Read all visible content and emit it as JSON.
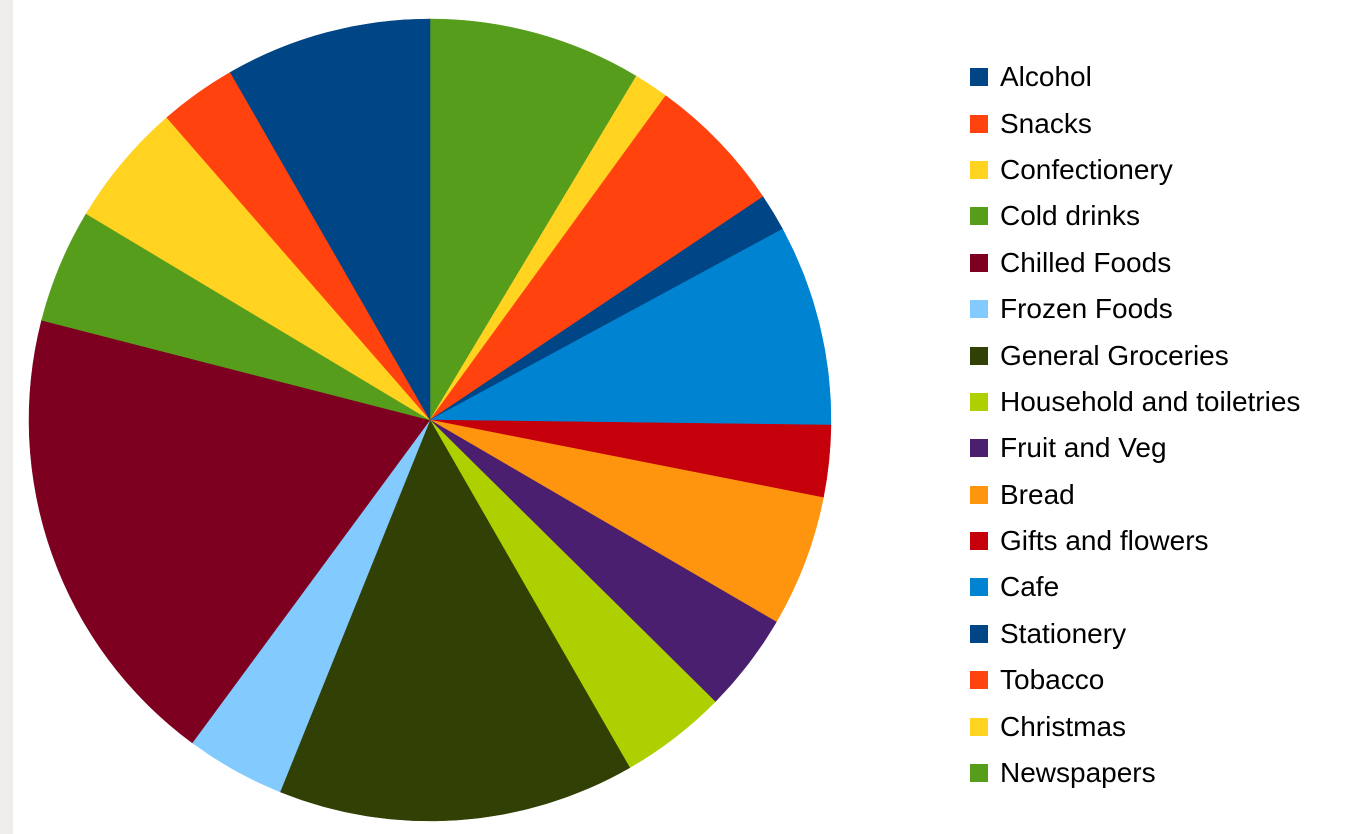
{
  "chart_data": {
    "type": "pie",
    "title": "",
    "legend_position": "right",
    "slices": [
      {
        "label": "Newspapers",
        "value": 8.6,
        "color": "#579d1c"
      },
      {
        "label": "Christmas",
        "value": 1.4,
        "color": "#ffd320"
      },
      {
        "label": "Tobacco",
        "value": 5.6,
        "color": "#ff420e"
      },
      {
        "label": "Stationery",
        "value": 1.5,
        "color": "#004586"
      },
      {
        "label": "Cafe",
        "value": 8.1,
        "color": "#0084d1"
      },
      {
        "label": "Gifts and flowers",
        "value": 2.9,
        "color": "#c5000b"
      },
      {
        "label": "Bread",
        "value": 5.3,
        "color": "#ff950e"
      },
      {
        "label": "Fruit and Veg",
        "value": 4.0,
        "color": "#4b1f6f"
      },
      {
        "label": "Household and toiletries",
        "value": 4.3,
        "color": "#aecf00"
      },
      {
        "label": "General Groceries",
        "value": 14.4,
        "color": "#314004"
      },
      {
        "label": "Frozen Foods",
        "value": 4.0,
        "color": "#83caff"
      },
      {
        "label": "Chilled Foods",
        "value": 18.9,
        "color": "#7e0021"
      },
      {
        "label": "Cold drinks",
        "value": 4.6,
        "color": "#579d1c"
      },
      {
        "label": "Confectionery",
        "value": 5.0,
        "color": "#ffd320"
      },
      {
        "label": "Snacks",
        "value": 3.1,
        "color": "#ff420e"
      },
      {
        "label": "Alcohol",
        "value": 8.3,
        "color": "#004586"
      }
    ]
  },
  "legend": {
    "items": [
      {
        "label": "Alcohol",
        "color": "#004586"
      },
      {
        "label": "Snacks",
        "color": "#ff420e"
      },
      {
        "label": "Confectionery",
        "color": "#ffd320"
      },
      {
        "label": "Cold drinks",
        "color": "#579d1c"
      },
      {
        "label": "Chilled Foods",
        "color": "#7e0021"
      },
      {
        "label": "Frozen Foods",
        "color": "#83caff"
      },
      {
        "label": "General Groceries",
        "color": "#314004"
      },
      {
        "label": "Household and toiletries",
        "color": "#aecf00"
      },
      {
        "label": "Fruit and Veg",
        "color": "#4b1f6f"
      },
      {
        "label": "Bread",
        "color": "#ff950e"
      },
      {
        "label": "Gifts and flowers",
        "color": "#c5000b"
      },
      {
        "label": "Cafe",
        "color": "#0084d1"
      },
      {
        "label": "Stationery",
        "color": "#004586"
      },
      {
        "label": "Tobacco",
        "color": "#ff420e"
      },
      {
        "label": "Christmas",
        "color": "#ffd320"
      },
      {
        "label": "Newspapers",
        "color": "#579d1c"
      }
    ]
  }
}
